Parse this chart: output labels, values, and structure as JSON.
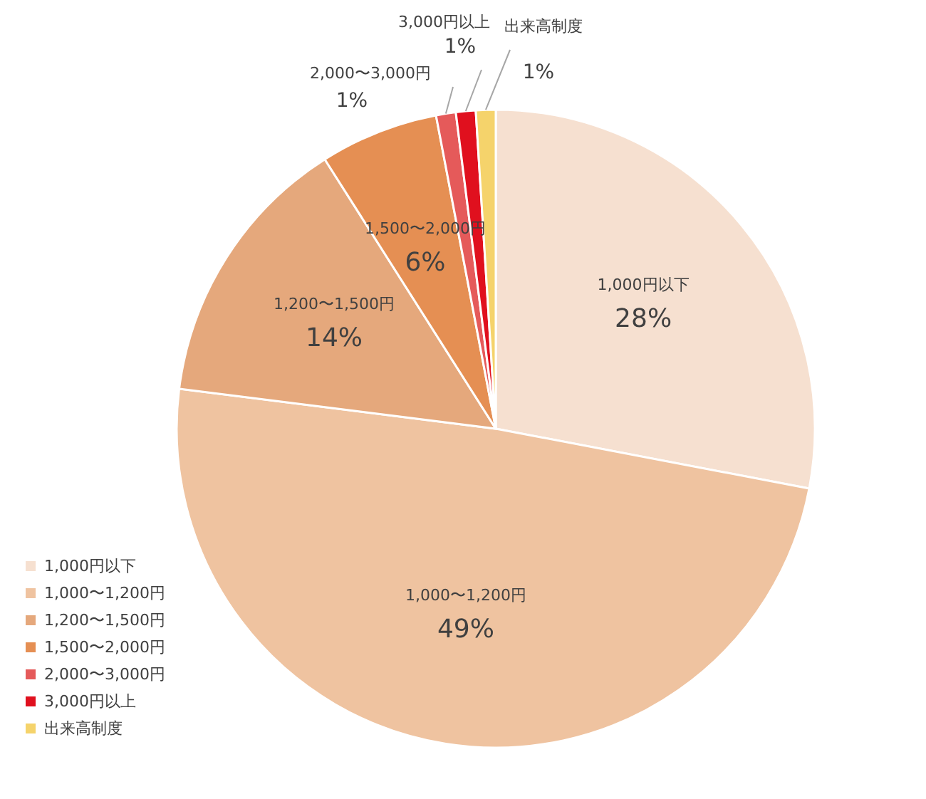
{
  "chart_data": {
    "type": "pie",
    "categories": [
      "1,000円以下",
      "1,000〜1,200円",
      "1,200〜1,500円",
      "1,500〜2,000円",
      "2,000〜3,000円",
      "3,000円以上",
      "出来高制度"
    ],
    "values": [
      28,
      49,
      14,
      6,
      1,
      1,
      1
    ],
    "value_labels": [
      "28%",
      "49%",
      "14%",
      "6%",
      "1%",
      "1%",
      "1%"
    ],
    "colors": [
      "#f6e0d0",
      "#efc3a0",
      "#e5a87c",
      "#e58f53",
      "#e55a5a",
      "#e0101e",
      "#f5d36b"
    ],
    "legend": "bottom left"
  }
}
